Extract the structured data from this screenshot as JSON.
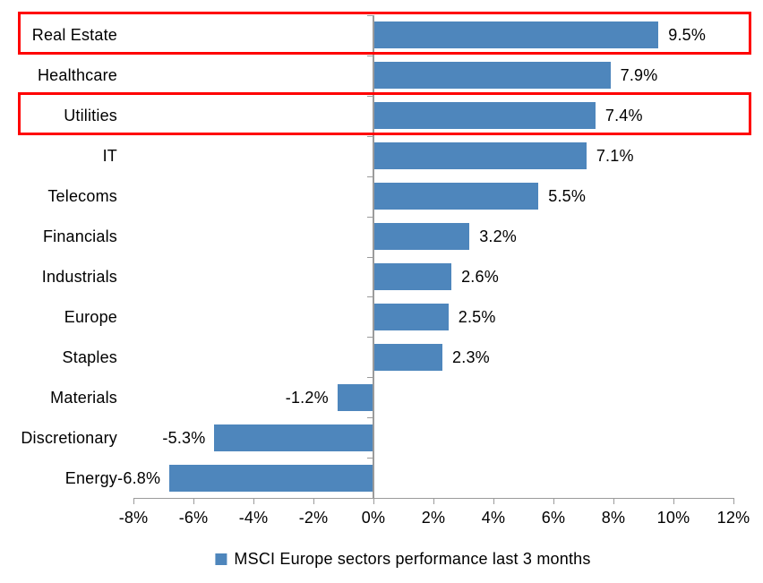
{
  "chart_data": {
    "type": "bar",
    "orientation": "horizontal",
    "title": "",
    "categories": [
      "Real Estate",
      "Healthcare",
      "Utilities",
      "IT",
      "Telecoms",
      "Financials",
      "Industrials",
      "Europe",
      "Staples",
      "Materials",
      "Discretionary",
      "Energy"
    ],
    "values": [
      9.5,
      7.9,
      7.4,
      7.1,
      5.5,
      3.2,
      2.6,
      2.5,
      2.3,
      -1.2,
      -5.3,
      -6.8
    ],
    "value_labels": [
      "9.5%",
      "7.9%",
      "7.4%",
      "7.1%",
      "5.5%",
      "3.2%",
      "2.6%",
      "2.5%",
      "2.3%",
      "-1.2%",
      "-5.3%",
      "-6.8%"
    ],
    "x_ticks": [
      "-8%",
      "-6%",
      "-4%",
      "-2%",
      "0%",
      "2%",
      "4%",
      "6%",
      "8%",
      "10%",
      "12%"
    ],
    "xlim": [
      -8,
      12
    ],
    "grid": false,
    "legend_position": "bottom",
    "legend": [
      {
        "label": "MSCI Europe sectors performance last 3 months",
        "color": "#4e86bc"
      }
    ],
    "highlighted_categories": [
      "Real Estate",
      "Utilities"
    ],
    "colors": {
      "bar": "#4e86bc",
      "highlight_box": "#ff0000",
      "axis": "#9b9b9b",
      "text": "#000000",
      "background": "#ffffff"
    }
  }
}
